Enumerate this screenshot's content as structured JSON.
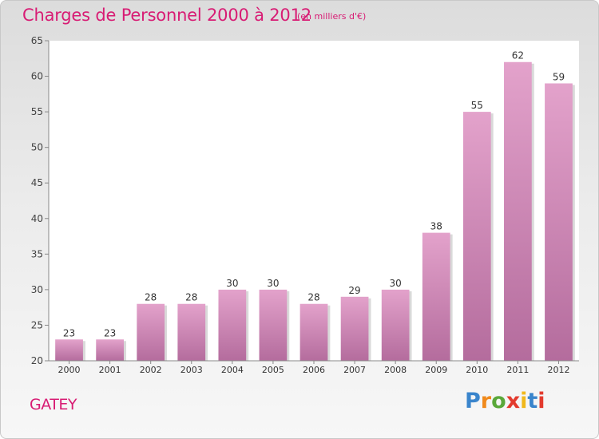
{
  "header": {
    "title": "Charges de Personnel 2000 à 2012",
    "subtitle": "(en milliers d'€)"
  },
  "footer": {
    "place": "GATEY",
    "logo_text": "Proxiti"
  },
  "colors": {
    "title": "#d81c74",
    "bar_light": "#e3a2cb",
    "bar_dark": "#b46c9d",
    "logo_letters": [
      "#3a85cc",
      "#f08a1c",
      "#5aa83a",
      "#e33b2e",
      "#f0b81c",
      "#3a85cc",
      "#e33b2e"
    ]
  },
  "chart_data": {
    "type": "bar",
    "categories": [
      "2000",
      "2001",
      "2002",
      "2003",
      "2004",
      "2005",
      "2006",
      "2007",
      "2008",
      "2009",
      "2010",
      "2011",
      "2012"
    ],
    "values": [
      23,
      23,
      28,
      28,
      30,
      30,
      28,
      29,
      30,
      38,
      55,
      62,
      59
    ],
    "ylim": [
      20,
      65
    ],
    "yticks": [
      20,
      25,
      30,
      35,
      40,
      45,
      50,
      55,
      60,
      65
    ],
    "xlabel": "",
    "ylabel": "",
    "grid": false,
    "data_labels": true
  }
}
